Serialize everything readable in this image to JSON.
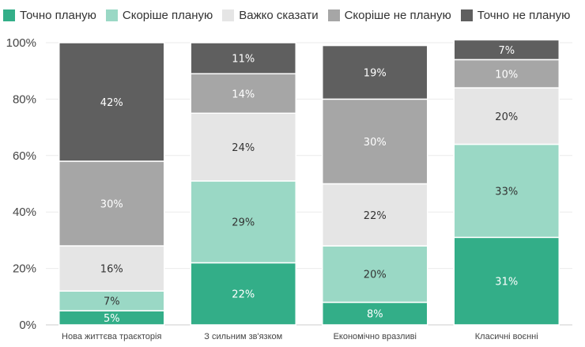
{
  "chart_data": {
    "type": "bar",
    "stacked": true,
    "categories": [
      "Нова життєва траєкторія",
      "З сильним зв'язком",
      "Економічно вразливі",
      "Класичні воєнні"
    ],
    "series": [
      {
        "name": "Точно планую",
        "color": "#33ae88",
        "label_color": "#ffffff",
        "values": [
          5,
          22,
          8,
          31
        ],
        "labels": [
          "5%",
          "22%",
          "8%",
          "31%"
        ]
      },
      {
        "name": "Скоріше планую",
        "color": "#9ad8c5",
        "label_color": "#333333",
        "values": [
          7,
          29,
          20,
          33
        ],
        "labels": [
          "7%",
          "29%",
          "20%",
          "33%"
        ]
      },
      {
        "name": "Важко сказати",
        "color": "#e5e5e5",
        "label_color": "#333333",
        "values": [
          16,
          24,
          22,
          20
        ],
        "labels": [
          "16%",
          "24%",
          "22%",
          "20%"
        ]
      },
      {
        "name": "Скоріше не планую",
        "color": "#a6a6a6",
        "label_color": "#ffffff",
        "values": [
          30,
          14,
          30,
          10
        ],
        "labels": [
          "30%",
          "14%",
          "30%",
          "10%"
        ]
      },
      {
        "name": "Точно не планую",
        "color": "#5f5f5f",
        "label_color": "#ffffff",
        "values": [
          42,
          11,
          19,
          7
        ],
        "labels": [
          "42%",
          "11%",
          "19%",
          "7%"
        ]
      }
    ],
    "y_ticks": [
      "0%",
      "20%",
      "40%",
      "60%",
      "80%",
      "100%"
    ],
    "ylim": [
      0,
      100
    ],
    "grid": true,
    "legend_position": "top-left",
    "title": "",
    "xlabel": "",
    "ylabel": ""
  }
}
